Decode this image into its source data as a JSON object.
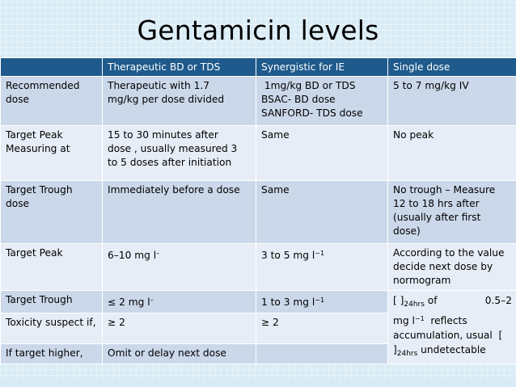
{
  "title": "Gentamicin levels",
  "headers": [
    "",
    "Therapeutic BD or TDS",
    "Synergistic for IE",
    "Single dose"
  ],
  "rows": [
    {
      "label": "Recommended dose",
      "c1": [
        "Therapeutic with 1.7",
        "mg/kg  per dose divided"
      ],
      "c2": [
        " 1mg/kg BD or TDS",
        "BSAC- BD dose",
        "SANFORD- TDS dose"
      ],
      "c3": [
        "5 to 7 mg/kg IV"
      ]
    },
    {
      "label": "Target Peak Measuring at",
      "c1": [
        "15 to 30 minutes after",
        "dose , usually  measured 3",
        "to 5 doses after initiation"
      ],
      "c2": [
        "Same"
      ],
      "c3": [
        "No peak"
      ]
    },
    {
      "label": "Target Trough dose",
      "c1": [
        "Immediately  before a dose"
      ],
      "c2": [
        "Same"
      ],
      "c3": [
        "No trough – Measure",
        "12 to 18 hrs after",
        "(usually after first",
        "dose)"
      ]
    },
    {
      "label": "Target Peak",
      "c1": "6–10 mg l",
      "c1_sup": "–",
      "c2": "3 to 5 mg l",
      "c2_sup": "−1",
      "c3": [
        "According to the value",
        "decide next dose by",
        "normogram"
      ]
    },
    {
      "label": "Target Trough",
      "c1": "≤ 2 mg l",
      "c1_sup": "–",
      "c2": "1 to 3 mg l",
      "c2_sup": "−1"
    },
    {
      "label": "Toxicity suspect if,",
      "c1": "≥ 2",
      "c2": "≥ 2"
    },
    {
      "label": "If target higher,",
      "c1": "Omit or delay next dose",
      "c2": ""
    }
  ],
  "merged_cell": {
    "part1": "[ ]",
    "sub1": "24hrs",
    "part2": " of",
    "part3": "0.5–2",
    "part4": "mg l",
    "sup": "−1",
    "part5": "  reflects",
    "part6": "accumulation, usual  [",
    "part7": "]",
    "sub2": "24hrs",
    "part8": " undetectable"
  }
}
